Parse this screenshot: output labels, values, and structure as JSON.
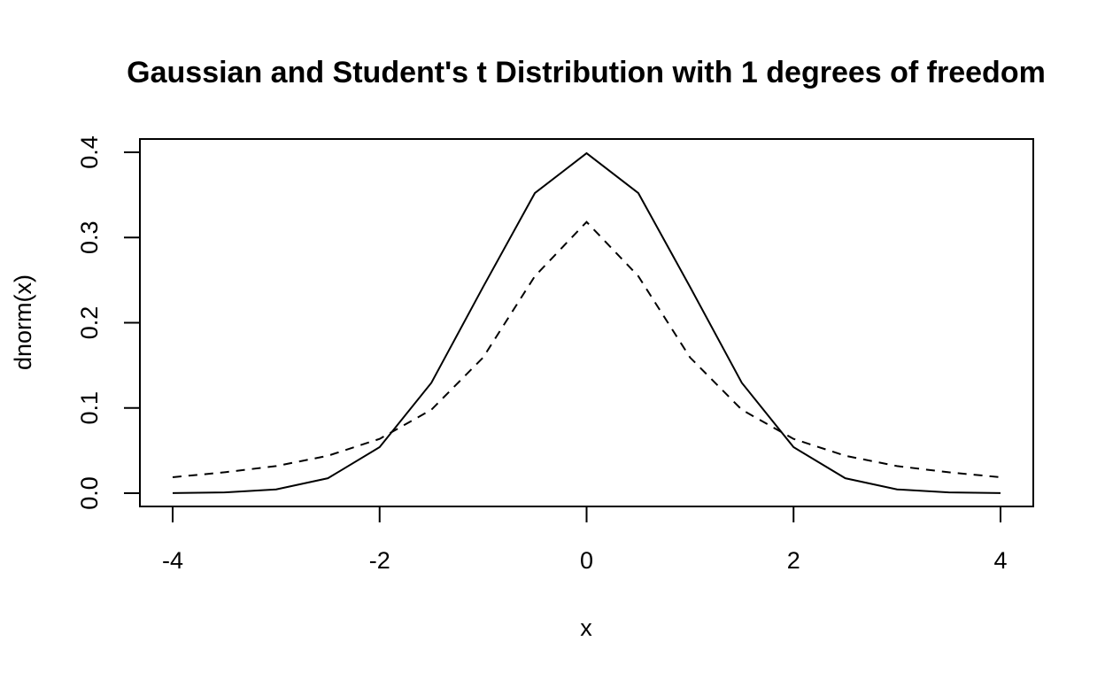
{
  "chart_data": {
    "type": "line",
    "title": "Gaussian and Student's t Distribution with 1 degrees of freedom",
    "xlabel": "x",
    "ylabel": "dnorm(x)",
    "xlim": [
      -4,
      4
    ],
    "ylim": [
      0,
      0.4
    ],
    "x_ticks": [
      "-4",
      "-2",
      "0",
      "2",
      "4"
    ],
    "x_tick_values": [
      -4,
      -2,
      0,
      2,
      4
    ],
    "y_ticks": [
      "0.0",
      "0.1",
      "0.2",
      "0.3",
      "0.4"
    ],
    "y_tick_values": [
      0,
      0.1,
      0.2,
      0.3,
      0.4
    ],
    "grid": false,
    "series": [
      {
        "style": "solid",
        "color": "#000000",
        "x": [
          -4,
          -3.5,
          -3,
          -2.5,
          -2,
          -1.5,
          -1,
          -0.5,
          0,
          0.5,
          1,
          1.5,
          2,
          2.5,
          3,
          3.5,
          4
        ],
        "y": [
          0.0001,
          0.0009,
          0.0044,
          0.0175,
          0.054,
          0.1295,
          0.242,
          0.3521,
          0.3989,
          0.3521,
          0.242,
          0.1295,
          0.054,
          0.0175,
          0.0044,
          0.0009,
          0.0001
        ]
      },
      {
        "style": "dashed",
        "color": "#000000",
        "x": [
          -4,
          -3.5,
          -3,
          -2.5,
          -2,
          -1.5,
          -1,
          -0.5,
          0,
          0.5,
          1,
          1.5,
          2,
          2.5,
          3,
          3.5,
          4
        ],
        "y": [
          0.0187,
          0.0245,
          0.0318,
          0.0439,
          0.0637,
          0.0979,
          0.1592,
          0.2546,
          0.3183,
          0.2546,
          0.1592,
          0.0979,
          0.0637,
          0.0439,
          0.0318,
          0.0245,
          0.0187
        ]
      }
    ]
  }
}
